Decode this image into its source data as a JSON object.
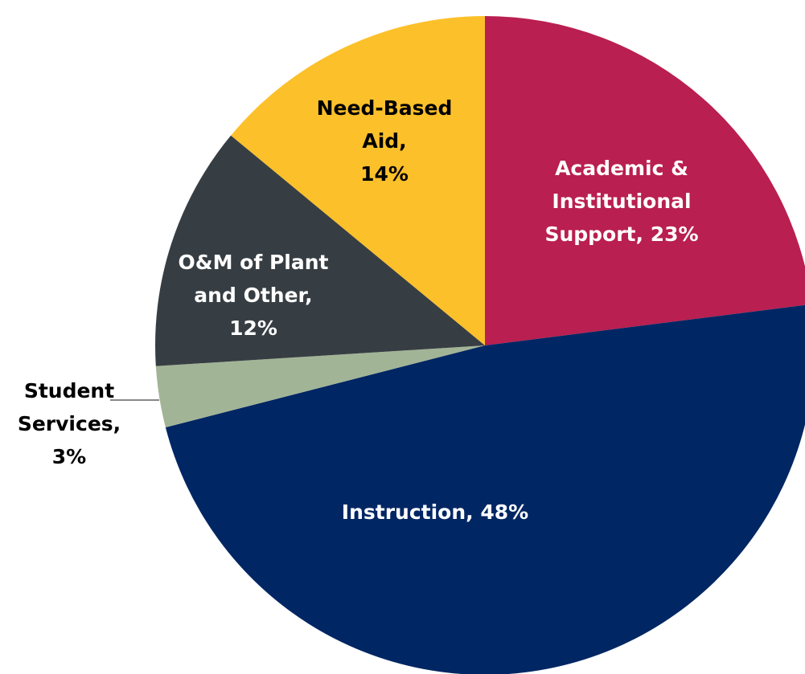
{
  "chart_data": {
    "type": "pie",
    "slices": [
      {
        "label": "Academic & Institutional Support",
        "display_lines": [
          "Academic &",
          "Institutional",
          "Support, 23%"
        ],
        "value": 23,
        "color": "#b91f50",
        "label_color": "#ffffff"
      },
      {
        "label": "Instruction",
        "display_lines": [
          "Instruction, 48%"
        ],
        "value": 48,
        "color": "#002663",
        "label_color": "#ffffff"
      },
      {
        "label": "Student Services",
        "display_lines": [
          "Student",
          "Services,",
          "3%"
        ],
        "value": 3,
        "color": "#a2b496",
        "label_color": "#000000",
        "outside_label": true
      },
      {
        "label": "O&M of Plant and Other",
        "display_lines": [
          "O&M of Plant",
          "and Other,",
          "12%"
        ],
        "value": 12,
        "color": "#373e43",
        "label_color": "#ffffff"
      },
      {
        "label": "Need-Based Aid",
        "display_lines": [
          "Need-Based",
          "Aid,",
          "14%"
        ],
        "value": 14,
        "color": "#fcc02a",
        "label_color": "#000000"
      }
    ],
    "start_angle_deg": 0,
    "direction": "clockwise"
  }
}
